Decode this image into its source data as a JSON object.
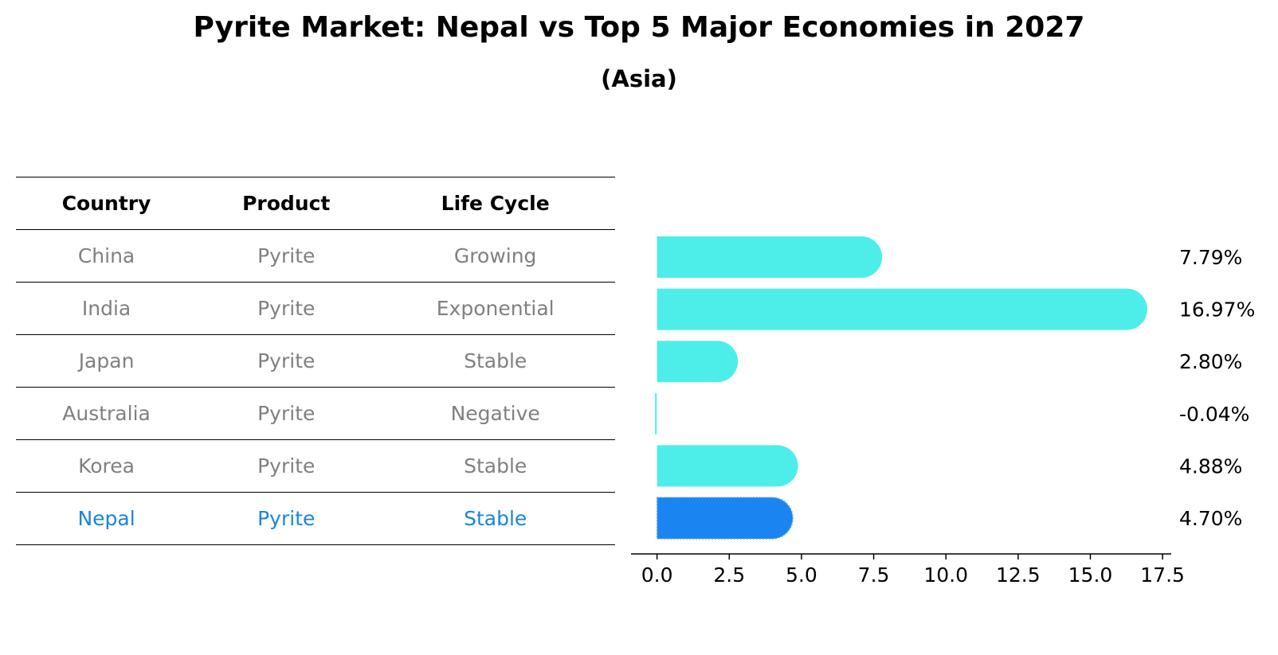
{
  "title": "Pyrite Market: Nepal vs Top 5 Major Economies in 2027",
  "subtitle": "(Asia)",
  "table": {
    "headers": [
      "Country",
      "Product",
      "Life Cycle"
    ],
    "rows": [
      [
        "China",
        "Pyrite",
        "Growing"
      ],
      [
        "India",
        "Pyrite",
        "Exponential"
      ],
      [
        "Japan",
        "Pyrite",
        "Stable"
      ],
      [
        "Australia",
        "Pyrite",
        "Negative"
      ],
      [
        "Korea",
        "Pyrite",
        "Stable"
      ],
      [
        "Nepal",
        "Pyrite",
        "Stable"
      ]
    ]
  },
  "colors": {
    "bar": "#4deeea",
    "highlight": "#1a85f0",
    "highlight_text": "#1a85d9",
    "muted_text": "#808080"
  },
  "chart_data": {
    "type": "bar",
    "orientation": "horizontal",
    "categories": [
      "China",
      "India",
      "Japan",
      "Australia",
      "Korea",
      "Nepal"
    ],
    "values": [
      7.79,
      16.97,
      2.8,
      -0.04,
      4.88,
      4.7
    ],
    "value_labels": [
      "7.79%",
      "16.97%",
      "2.80%",
      "-0.04%",
      "4.88%",
      "4.70%"
    ],
    "highlight": "Nepal",
    "xlim": [
      -0.9,
      17.8
    ],
    "xticks": [
      0.0,
      2.5,
      5.0,
      7.5,
      10.0,
      12.5,
      15.0,
      17.5
    ],
    "xtick_labels": [
      "0.0",
      "2.5",
      "5.0",
      "7.5",
      "10.0",
      "12.5",
      "15.0",
      "17.5"
    ],
    "xlabel": "",
    "ylabel": "",
    "grid": false
  }
}
